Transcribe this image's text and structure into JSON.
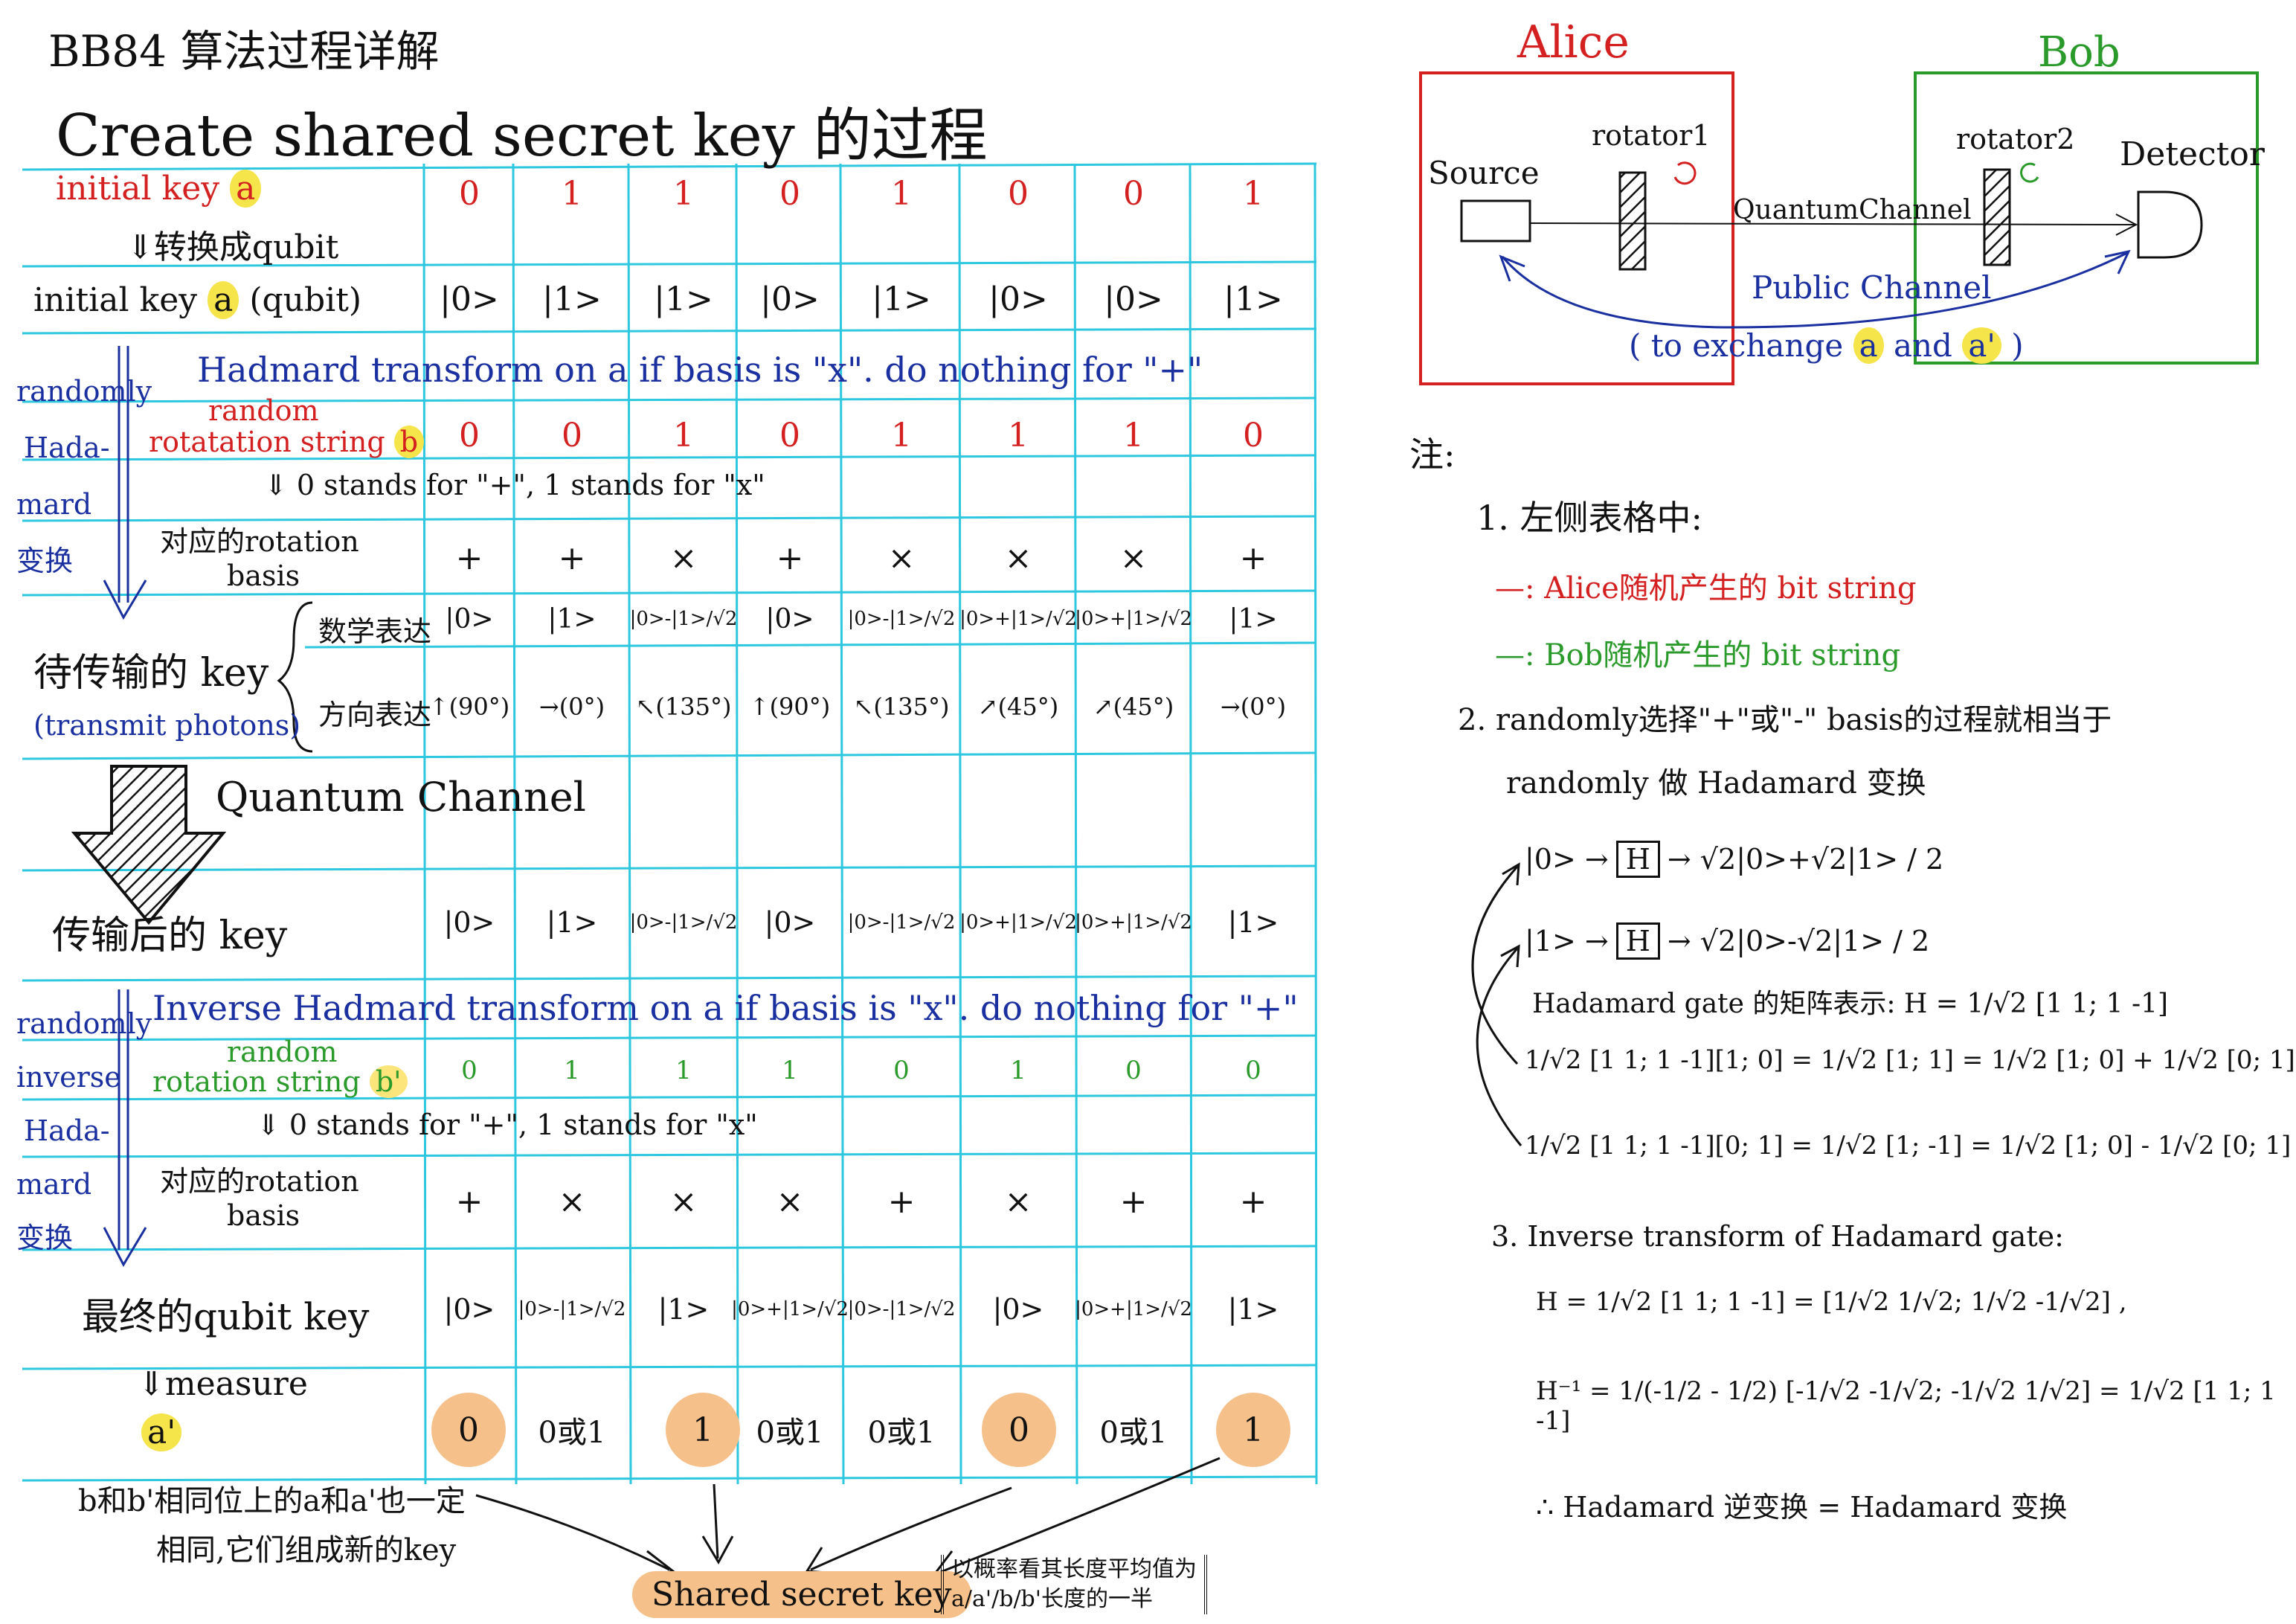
{
  "header": {
    "title": "BB84 算法过程详解",
    "subtitle": "Create shared secret key 的过程"
  },
  "table": {
    "row_initial_key": {
      "label": "initial key",
      "var": "a",
      "values": [
        "0",
        "1",
        "1",
        "0",
        "1",
        "0",
        "0",
        "1"
      ]
    },
    "convert_note": "⇓转换成qubit",
    "row_initial_qubit": {
      "label": "initial key",
      "var": "a",
      "suffix": "(qubit)",
      "values": [
        "|0>",
        "|1>",
        "|1>",
        "|0>",
        "|1>",
        "|0>",
        "|0>",
        "|1>"
      ]
    },
    "side_randomly_hadamard": [
      "randomly",
      "Hada-",
      "mard",
      "变换"
    ],
    "hadamard_title": "Hadmard transform on a if basis is \"x\". do nothing for \"+\"",
    "row_b": {
      "label_top": "random",
      "label": "rotatation string",
      "var": "b",
      "values": [
        "0",
        "0",
        "1",
        "0",
        "1",
        "1",
        "1",
        "0"
      ]
    },
    "stands_note": "⇓ 0 stands for \"+\",  1 stands for \"x\"",
    "row_basis_b": {
      "label": [
        "对应的rotation",
        "basis"
      ],
      "values": [
        "+",
        "+",
        "×",
        "+",
        "×",
        "×",
        "×",
        "+"
      ]
    },
    "transmit_label": [
      "待传输的 key",
      "(transmit photons)"
    ],
    "math_label": "数学表达",
    "dir_label": "方向表达",
    "row_math": [
      "|0>",
      "|1>",
      "|0>-|1>/√2",
      "|0>",
      "|0>-|1>/√2",
      "|0>+|1>/√2",
      "|0>+|1>/√2",
      "|1>"
    ],
    "row_dir": [
      "↑(90°)",
      "→(0°)",
      "↖(135°)",
      "↑(90°)",
      "↖(135°)",
      "↗(45°)",
      "↗(45°)",
      "→(0°)"
    ],
    "quantum_channel": "Quantum Channel",
    "after_label": "传输后的 key",
    "row_after": [
      "|0>",
      "|1>",
      "|0>-|1>/√2",
      "|0>",
      "|0>-|1>/√2",
      "|0>+|1>/√2",
      "|0>+|1>/√2",
      "|1>"
    ],
    "side_randomly_inverse": [
      "randomly",
      "inverse",
      "Hada-",
      "mard",
      "变换"
    ],
    "inverse_title": "Inverse Hadmard transform on a if basis is \"x\". do nothing for \"+\"",
    "row_b_prime": {
      "label_top": "random",
      "label": "rotation string",
      "var": "b'",
      "values": [
        "0",
        "1",
        "1",
        "1",
        "0",
        "1",
        "0",
        "0"
      ]
    },
    "stands_note2": "⇓ 0 stands for \"+\",  1 stands for \"x\"",
    "row_basis_b_prime": {
      "label": [
        "对应的rotation",
        "basis"
      ],
      "values": [
        "+",
        "×",
        "×",
        "×",
        "+",
        "×",
        "+",
        "+"
      ]
    },
    "final_label": "最终的qubit key",
    "row_final": [
      "|0>",
      "|0>-|1>/√2",
      "|1>",
      "|0>+|1>/√2",
      "|0>-|1>/√2",
      "|0>",
      "|0>+|1>/√2",
      "|1>"
    ],
    "measure_note": "⇓measure",
    "row_a_prime": {
      "var": "a'",
      "values": [
        "0",
        "0或1",
        "1",
        "0或1",
        "0或1",
        "0",
        "0或1",
        "1"
      ],
      "highlighted": [
        true,
        false,
        true,
        false,
        false,
        true,
        false,
        true
      ]
    },
    "conclusion": [
      "b和b'相同位上的a和a'也一定",
      "相同,它们组成新的key"
    ],
    "shared_key": "Shared secret key",
    "shared_note": [
      "以概率看其长度平均值为",
      "a/a'/b/b'长度的一半"
    ]
  },
  "diagram": {
    "alice": "Alice",
    "bob": "Bob",
    "source": "Source",
    "rotator1": "rotator1",
    "rotator2": "rotator2",
    "detector": "Detector",
    "quantum_channel": "QuantumChannel",
    "public_channel": "Public Channel",
    "exchange": "( to exchange",
    "exchange_a": "a",
    "exchange_and": "and",
    "exchange_a2": "a'",
    "exchange_close": ")",
    "colors": {
      "alice": "#d42020",
      "bob": "#2a9a2a",
      "public": "#1a2fa0"
    }
  },
  "notes": {
    "heading": "注:",
    "n1": "1. 左侧表格中:",
    "n1_red": "—: Alice随机产生的 bit string",
    "n1_green": "—: Bob随机产生的 bit string",
    "n2a": "2. randomly选择\"+\"或\"-\" basis的过程就相当于",
    "n2b": "randomly 做 Hadamard 变换",
    "h0_left": "|0> →",
    "h0_gate": "H",
    "h0_right": "→ √2|0>+√2|1> / 2",
    "h1_left": "|1> →",
    "h1_gate": "H",
    "h1_right": "→ √2|0>-√2|1> / 2",
    "matrix_line": "Hadamard gate 的矩阵表示:  H = 1/√2 [1 1; 1 -1]",
    "eq1": "1/√2 [1 1; 1 -1][1; 0] = 1/√2 [1; 1] = 1/√2 [1; 0] + 1/√2 [0; 1]",
    "eq2": "1/√2 [1 1; 1 -1][0; 1] = 1/√2 [1; -1] = 1/√2 [1; 0] - 1/√2 [0; 1]",
    "n3": "3. Inverse transform of Hadamard gate:",
    "eq3": "H = 1/√2 [1 1; 1 -1] = [1/√2 1/√2; 1/√2 -1/√2] ,",
    "eq4": "H⁻¹ = 1/(-1/2 - 1/2) [-1/√2 -1/√2; -1/√2 1/√2] = 1/√2 [1 1; 1 -1]",
    "conclusion": "∴ Hadamard 逆变换 = Hadamard 变换"
  }
}
